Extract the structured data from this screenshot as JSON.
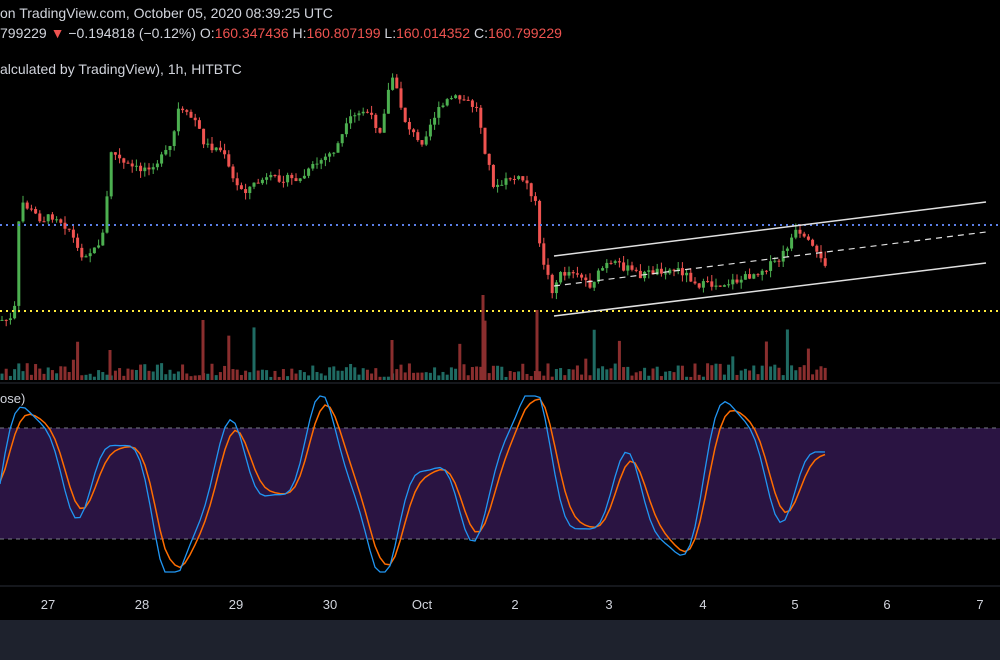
{
  "header": {
    "line1": "on TradingView.com, October 05, 2020 08:39:25 UTC",
    "price": "799229",
    "change": "−0.194818 (−0.12%)",
    "o_label": "O:",
    "o_value": "160.347436",
    "h_label": "H:",
    "h_value": "160.807199",
    "l_label": "L:",
    "l_value": "160.014352",
    "c_label": "C:",
    "c_value": "160.799229",
    "series_label": "alculated by TradingView), 1h, HITBTC",
    "stoch_label": "ose)"
  },
  "colors": {
    "up": "#26a69a",
    "up_bright": "#4caf50",
    "down": "#ef5350",
    "blue_line": "#5b7fe8",
    "yellow_line": "#ffeb3b",
    "k_line": "#2196f3",
    "d_line": "#ff6d00",
    "band": "#2a1442"
  },
  "chart_data": {
    "type": "candlestick",
    "x_ticks": [
      "27",
      "28",
      "29",
      "30",
      "Oct",
      "2",
      "3",
      "4",
      "5",
      "6",
      "7"
    ],
    "annotations": {
      "resistance_dotted_line": "blue",
      "support_dotted_line": "yellow",
      "channel": "ascending parallel channel with dashed midline"
    },
    "stochastic": {
      "upper_band": 80,
      "lower_band": 20,
      "range": [
        0,
        100
      ]
    }
  }
}
